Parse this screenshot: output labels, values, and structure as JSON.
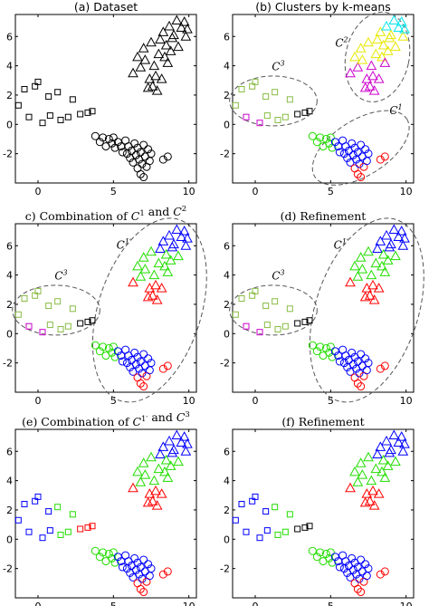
{
  "chart_data": {
    "type": "scatter",
    "xlim": [
      -1.5,
      10.5
    ],
    "ylim": [
      -4,
      7.5
    ],
    "xticks": [
      0,
      5,
      10
    ],
    "yticks": [
      -2,
      0,
      2,
      4,
      6
    ],
    "xtick_labels": [
      "0",
      "5",
      "10"
    ],
    "ytick_labels": [
      "-2",
      "0",
      "2",
      "4",
      "6"
    ],
    "grid": false,
    "dataset": {
      "squares": [
        [
          -1.3,
          1.3
        ],
        [
          -0.9,
          2.4
        ],
        [
          -0.6,
          0.5
        ],
        [
          -0.2,
          2.6
        ],
        [
          0.0,
          2.9
        ],
        [
          0.3,
          0.1
        ],
        [
          0.7,
          1.9
        ],
        [
          0.8,
          0.6
        ],
        [
          1.3,
          2.2
        ],
        [
          1.5,
          0.3
        ],
        [
          2.0,
          0.5
        ],
        [
          2.3,
          1.7
        ],
        [
          2.8,
          0.7
        ],
        [
          3.3,
          0.8
        ],
        [
          3.6,
          0.9
        ]
      ],
      "triangles": [
        [
          6.3,
          3.5
        ],
        [
          6.6,
          4.6
        ],
        [
          6.8,
          3.9
        ],
        [
          7.0,
          5.2
        ],
        [
          7.1,
          4.4
        ],
        [
          7.3,
          2.5
        ],
        [
          7.4,
          3.1
        ],
        [
          7.5,
          5.6
        ],
        [
          7.6,
          2.6
        ],
        [
          7.7,
          4.0
        ],
        [
          7.8,
          3.3
        ],
        [
          7.9,
          2.3
        ],
        [
          8.0,
          4.8
        ],
        [
          8.1,
          5.8
        ],
        [
          8.2,
          3.1
        ],
        [
          8.3,
          6.3
        ],
        [
          8.4,
          4.6
        ],
        [
          8.5,
          5.4
        ],
        [
          8.6,
          4.2
        ],
        [
          8.7,
          6.7
        ],
        [
          8.8,
          5.0
        ],
        [
          8.9,
          5.9
        ],
        [
          9.0,
          6.1
        ],
        [
          9.2,
          7.1
        ],
        [
          9.3,
          5.3
        ],
        [
          9.5,
          6.6
        ],
        [
          9.7,
          7.0
        ],
        [
          9.8,
          6.0
        ],
        [
          9.9,
          6.5
        ]
      ],
      "circles": [
        [
          3.8,
          -0.8
        ],
        [
          4.1,
          -1.2
        ],
        [
          4.3,
          -0.9
        ],
        [
          4.5,
          -1.5
        ],
        [
          4.7,
          -1.0
        ],
        [
          4.9,
          -1.3
        ],
        [
          5.0,
          -0.9
        ],
        [
          5.1,
          -1.6
        ],
        [
          5.3,
          -1.2
        ],
        [
          5.5,
          -1.5
        ],
        [
          5.6,
          -1.9
        ],
        [
          5.8,
          -1.1
        ],
        [
          5.9,
          -2.0
        ],
        [
          6.0,
          -1.5
        ],
        [
          6.1,
          -2.3
        ],
        [
          6.2,
          -1.8
        ],
        [
          6.3,
          -2.6
        ],
        [
          6.4,
          -1.3
        ],
        [
          6.5,
          -2.1
        ],
        [
          6.6,
          -3.0
        ],
        [
          6.6,
          -1.6
        ],
        [
          6.7,
          -2.4
        ],
        [
          6.8,
          -3.4
        ],
        [
          6.8,
          -1.9
        ],
        [
          6.9,
          -2.7
        ],
        [
          7.0,
          -1.4
        ],
        [
          7.0,
          -3.6
        ],
        [
          7.1,
          -2.2
        ],
        [
          7.2,
          -2.9
        ],
        [
          7.3,
          -1.7
        ],
        [
          7.4,
          -2.5
        ],
        [
          7.5,
          -2.0
        ],
        [
          8.3,
          -2.4
        ],
        [
          8.6,
          -2.2
        ]
      ]
    },
    "panels": [
      {
        "title_text": "(a) Dataset",
        "font": "sans",
        "coloring": "dataset",
        "annotations": []
      },
      {
        "title_text": "(b) Clusters by k-means",
        "font": "sans",
        "coloring": "kmeans",
        "annotations": [
          {
            "text": "C",
            "sup": "1",
            "x": 8.9,
            "y": 0.7
          },
          {
            "text": "C",
            "sup": "2",
            "x": 5.3,
            "y": 5.3
          },
          {
            "text": "C",
            "sup": "3",
            "x": 1.1,
            "y": 3.7
          }
        ]
      },
      {
        "title_parts": [
          "c) Combination of ",
          "C",
          "1",
          " and ",
          "C",
          "2"
        ],
        "font": "serif",
        "coloring": "combined12",
        "annotations": [
          {
            "text": "C",
            "sup": "1′",
            "x": 5.2,
            "y": 5.8
          },
          {
            "text": "C",
            "sup": "3",
            "x": 1.1,
            "y": 3.7
          }
        ]
      },
      {
        "title_text": "(d) Refinement",
        "font": "serif",
        "coloring": "refined1",
        "annotations": [
          {
            "text": "C",
            "sup": "1′",
            "x": 5.2,
            "y": 5.8
          },
          {
            "text": "C",
            "sup": "3",
            "x": 1.1,
            "y": 3.7
          }
        ]
      },
      {
        "title_parts": [
          "(e) Combination of ",
          "C",
          "1′",
          " and ",
          "C",
          "3"
        ],
        "font": "serif",
        "coloring": "combined13",
        "annotations": []
      },
      {
        "title_text": "(f) Refinement",
        "font": "serif",
        "coloring": "refined2",
        "annotations": []
      }
    ]
  }
}
